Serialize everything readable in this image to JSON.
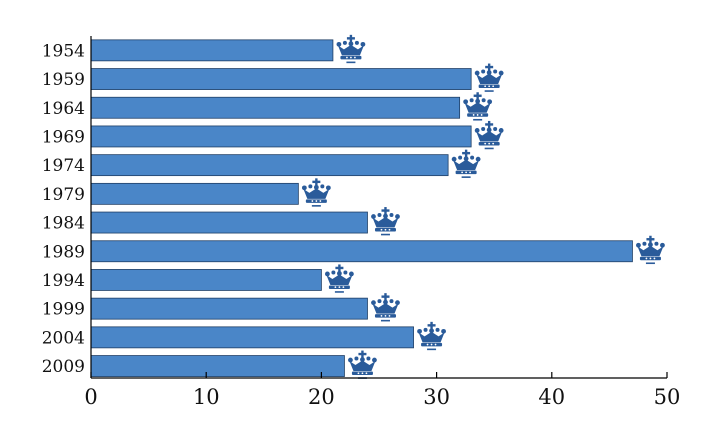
{
  "chart_data": {
    "type": "bar",
    "orientation": "horizontal",
    "categories": [
      "1954",
      "1959",
      "1964",
      "1969",
      "1974",
      "1979",
      "1984",
      "1989",
      "1994",
      "1999",
      "2004",
      "2009"
    ],
    "values": [
      21,
      33,
      32,
      33,
      31,
      18,
      24,
      47,
      20,
      24,
      28,
      22
    ],
    "title": "",
    "xlabel": "",
    "ylabel": "",
    "xlim": [
      0,
      50
    ],
    "xticks": [
      0,
      10,
      20,
      30,
      40,
      50
    ],
    "grid": false,
    "bar_color": "#4a86c8",
    "bar_edge_color": "#1f3f66",
    "marker_icon": "crown-icon",
    "marker_color": "#2a5b9a"
  }
}
